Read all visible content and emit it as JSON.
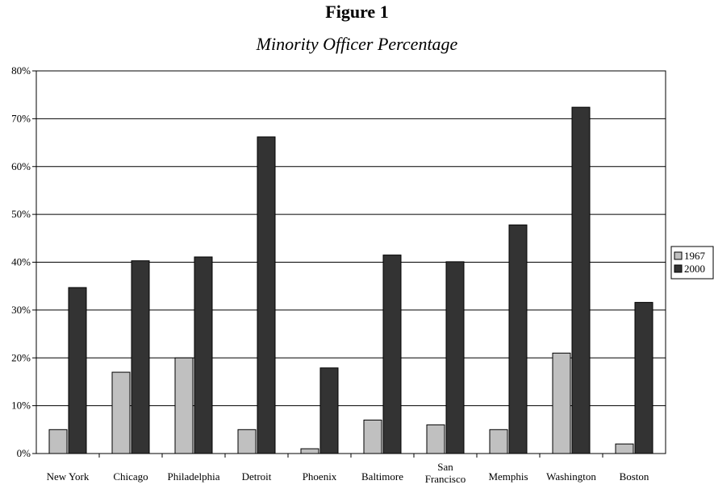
{
  "figure_label": "Figure 1",
  "chart_data": {
    "type": "bar",
    "title": "Minority Officer Percentage",
    "categories": [
      [
        "New York"
      ],
      [
        "Chicago"
      ],
      [
        "Philadelphia"
      ],
      [
        "Detroit"
      ],
      [
        "Phoenix"
      ],
      [
        "Baltimore"
      ],
      [
        "San",
        "Francisco"
      ],
      [
        "Memphis"
      ],
      [
        "Washington"
      ],
      [
        "Boston"
      ]
    ],
    "series": [
      {
        "name": "1967",
        "color": "#c0c0c0",
        "values": [
          5,
          17,
          20,
          5,
          1,
          7,
          6,
          5,
          21,
          2
        ]
      },
      {
        "name": "2000",
        "color": "#333333",
        "values": [
          34.7,
          40.3,
          41.1,
          66.2,
          17.9,
          41.5,
          40.1,
          47.8,
          72.4,
          31.6
        ]
      }
    ],
    "ylim": [
      0,
      80
    ],
    "yticks": [
      "0%",
      "10%",
      "20%",
      "30%",
      "40%",
      "50%",
      "60%",
      "70%",
      "80%"
    ],
    "grid": true,
    "legend_position": "right",
    "xlabel": "",
    "ylabel": ""
  }
}
